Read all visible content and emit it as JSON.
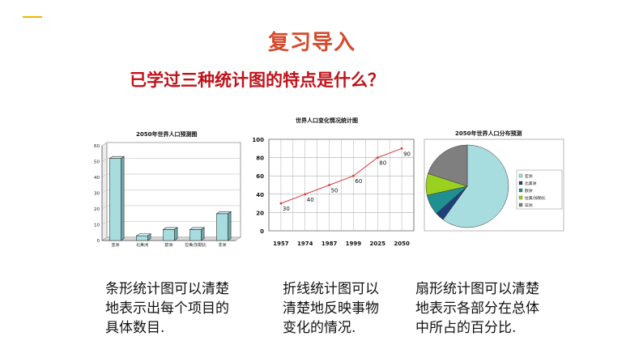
{
  "slide": {
    "title": "复习导入",
    "subtitle": "已学过三种统计图的特点是什么？"
  },
  "colors": {
    "accent_line": "#f0b400",
    "title": "#d6492b",
    "subtitle": "#c0121a",
    "bar_fill": "#a8dde0",
    "line_stroke": "#d93c3c",
    "pie_slice_1": "#a8dde0",
    "pie_slice_2": "#1f3f7a",
    "pie_slice_3": "#1f8f8f",
    "pie_slice_4": "#9ad11f",
    "pie_slice_5": "#7f7f7f"
  },
  "chart_data": [
    {
      "type": "bar",
      "title": "2050年世界人口预测图",
      "categories": [
        "亚洲",
        "北美洲",
        "欧洲",
        "拉美/加勒比",
        "非洲"
      ],
      "values": [
        52,
        3,
        7,
        7,
        17
      ],
      "ylim": [
        0,
        60
      ],
      "yticks": [
        0,
        10,
        20,
        30,
        40,
        50,
        60
      ],
      "grid": true,
      "xlabel": "",
      "ylabel": ""
    },
    {
      "type": "line",
      "title": "世界人口变化情况统计图",
      "categories": [
        "1957",
        "1974",
        "1987",
        "1999",
        "2025",
        "2050"
      ],
      "values": [
        30,
        40,
        50,
        60,
        80,
        90
      ],
      "data_labels": [
        "30",
        "40",
        "50",
        "60",
        "80",
        "90"
      ],
      "ylim": [
        0,
        100
      ],
      "yticks": [
        0,
        20,
        40,
        60,
        80,
        100
      ],
      "grid": true,
      "xlabel": "",
      "ylabel": ""
    },
    {
      "type": "pie",
      "title": "2050年世界人口分布预测",
      "labels": [
        "亚洲",
        "北美洲",
        "欧洲",
        "拉美/加勒比",
        "非洲"
      ],
      "values": [
        60.0,
        3.5,
        8.0,
        8.5,
        20.0
      ],
      "legend": "right"
    }
  ],
  "descriptions": [
    {
      "lines": [
        "条形统计图可以清楚",
        "地表示出每个项目的",
        "具体数目."
      ]
    },
    {
      "lines": [
        "折线统计图可以",
        "清楚地反映事物",
        "变化的情况."
      ]
    },
    {
      "lines": [
        "扇形统计图可以清楚",
        "地表示各部分在总体",
        "中所占的百分比."
      ]
    }
  ]
}
